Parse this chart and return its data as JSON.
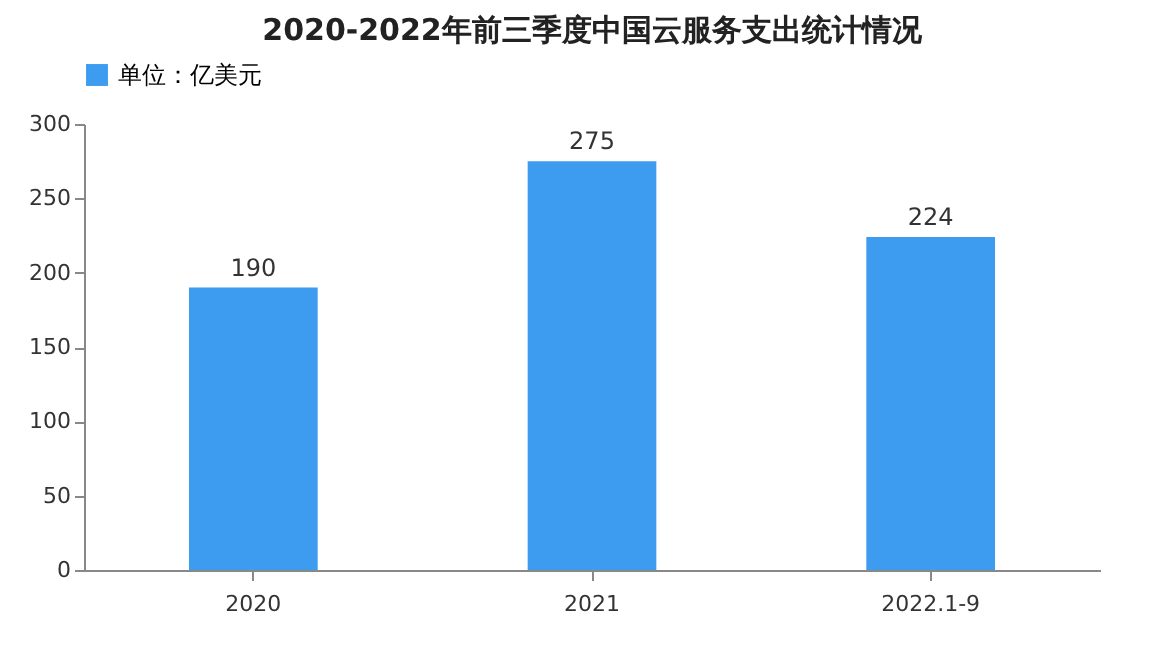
{
  "chart_data": {
    "type": "bar",
    "title": "2020-2022年前三季度中国云服务支出统计情况",
    "categories": [
      "2020",
      "2021",
      "2022.1-9"
    ],
    "series": [
      {
        "name": "单位：亿美元",
        "color": "#3d9bf0",
        "values": [
          190,
          275,
          224
        ]
      }
    ],
    "ylim": [
      0,
      300
    ],
    "yticks": [
      0,
      50,
      100,
      150,
      200,
      250,
      300
    ],
    "grid": false,
    "legend": "top",
    "data_labels": true
  }
}
